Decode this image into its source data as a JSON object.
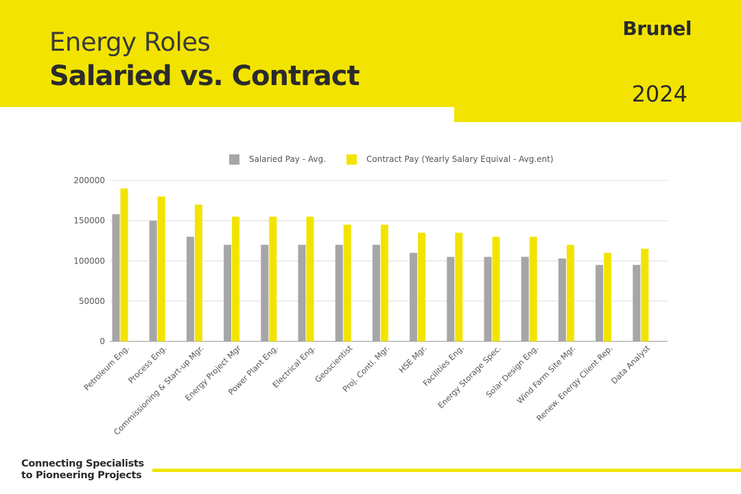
{
  "header": {
    "subtitle": "Energy Roles",
    "title": "Salaried vs. Contract",
    "brand": "Brunel",
    "year": "2024"
  },
  "footer": {
    "tagline_line1": "Connecting Specialists",
    "tagline_line2": "to Pioneering Projects"
  },
  "colors": {
    "accent": "#f2e400",
    "salaried": "#a6a6a6",
    "contract": "#f2e400"
  },
  "chart_data": {
    "type": "bar",
    "title": "Energy Roles Salaried vs. Contract",
    "xlabel": "",
    "ylabel": "",
    "ylim": [
      0,
      200000
    ],
    "yticks": [
      0,
      50000,
      100000,
      150000,
      200000
    ],
    "grid": true,
    "legend_position": "top",
    "categories": [
      "Petroleum Eng.",
      "Process Eng.",
      "Commissioning & Start-up Mgr.",
      "Energy Project Mgr",
      "Power Plant Eng.",
      "Electrical Eng.",
      "Geoscientist",
      "Proj. Contl. Mgr.",
      "HSE Mgr.",
      "Facilities Eng.",
      "Energy Storage Spec.",
      "Solar Design Eng.",
      "Wind Farm Site Mgr.",
      "Renew. Energy Client Rep.",
      "Data Analyst"
    ],
    "series": [
      {
        "name": "Salaried Pay - Avg.",
        "color": "#a6a6a6",
        "values": [
          158000,
          150000,
          130000,
          120000,
          120000,
          120000,
          120000,
          120000,
          110000,
          105000,
          105000,
          105000,
          103000,
          95000,
          95000
        ]
      },
      {
        "name": "Contract Pay (Yearly Salary Equival - Avg.ent)",
        "color": "#f2e400",
        "values": [
          190000,
          180000,
          170000,
          155000,
          155000,
          155000,
          145000,
          145000,
          135000,
          135000,
          130000,
          130000,
          120000,
          110000,
          115000
        ]
      }
    ]
  }
}
